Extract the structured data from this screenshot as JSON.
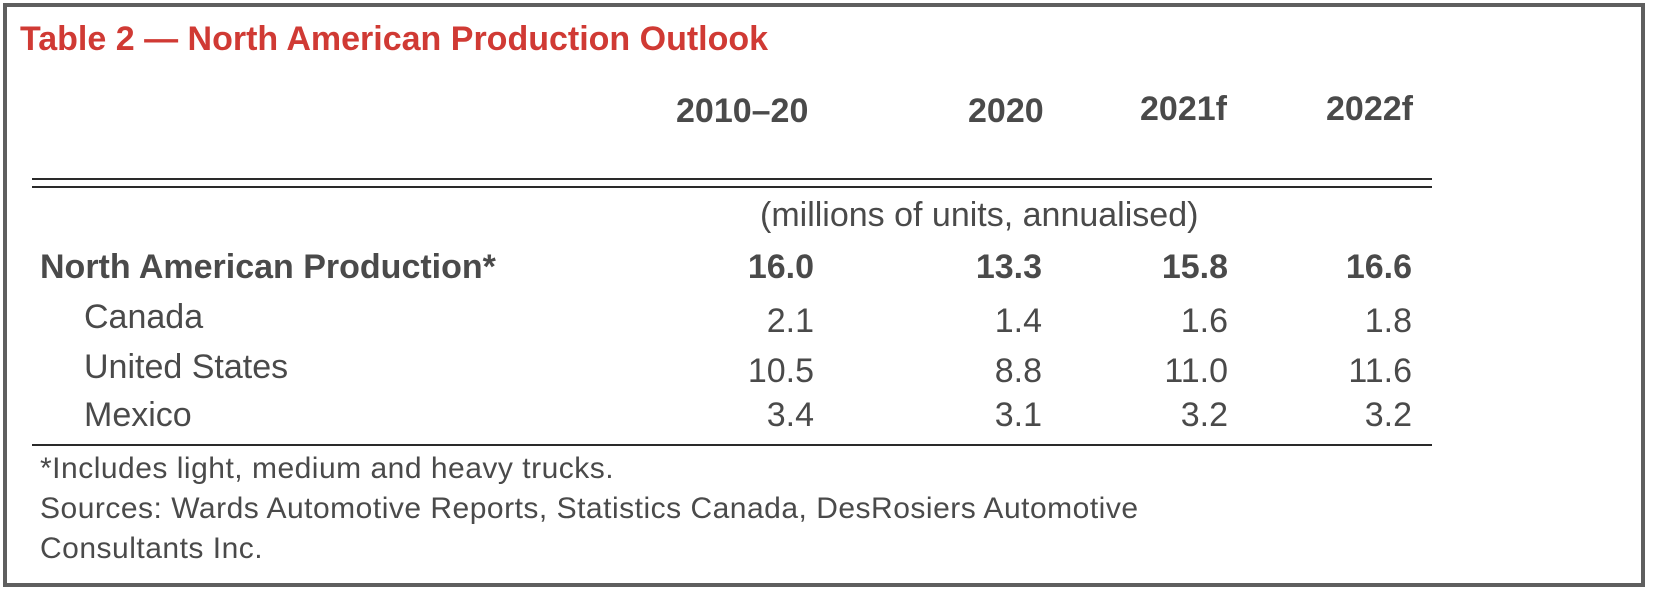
{
  "title": "Table 2 — North American Production Outlook",
  "columns": [
    "2010–20",
    "2020",
    "2021f",
    "2022f"
  ],
  "units": "(millions of units, annualised)",
  "rows": [
    {
      "label": "North American Production*",
      "values": [
        "16.0",
        "13.3",
        "15.8",
        "16.6"
      ],
      "bold": true
    },
    {
      "label": "Canada",
      "values": [
        "2.1",
        "1.4",
        "1.6",
        "1.8"
      ]
    },
    {
      "label": "United States",
      "values": [
        "10.5",
        "8.8",
        "11.0",
        "11.6"
      ]
    },
    {
      "label": "Mexico",
      "values": [
        "3.4",
        "3.1",
        "3.2",
        "3.2"
      ]
    }
  ],
  "footnote": "*Includes light, medium and heavy trucks.",
  "sources_line1": "Sources: Wards Automotive Reports, Statistics Canada, DesRosiers Automotive",
  "sources_line2": "Consultants Inc.",
  "colors": {
    "title": "#d03a34",
    "text": "#4a4a4a",
    "border": "#5f5f5f"
  }
}
